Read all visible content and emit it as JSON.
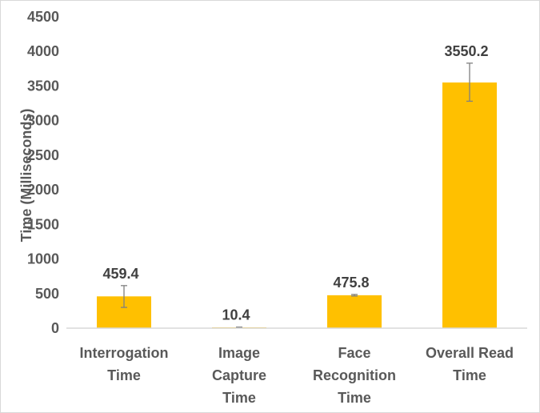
{
  "chart_data": {
    "type": "bar",
    "title": "",
    "xlabel": "",
    "ylabel": "Time (Milliseconds)",
    "ylim": [
      0,
      4500
    ],
    "ytick_step": 500,
    "y_ticks": [
      "0",
      "500",
      "1000",
      "1500",
      "2000",
      "2500",
      "3000",
      "3500",
      "4000",
      "4500"
    ],
    "grid": false,
    "categories": [
      [
        "Interrogation",
        "Time"
      ],
      [
        "Image",
        "Capture",
        "Time"
      ],
      [
        "Face",
        "Recognition",
        "Time"
      ],
      [
        "Overall Read",
        "Time"
      ]
    ],
    "values": [
      459.4,
      10.4,
      475.8,
      3550.2
    ],
    "data_labels": [
      "459.4",
      "10.4",
      "475.8",
      "3550.2"
    ],
    "error_bars": [
      [
        300,
        615
      ],
      [
        5,
        15
      ],
      [
        465,
        487
      ],
      [
        3280,
        3830
      ]
    ],
    "bar_color": "#FFC000",
    "axis_color": "#d9d9d9",
    "error_bar_color": "#808080"
  }
}
